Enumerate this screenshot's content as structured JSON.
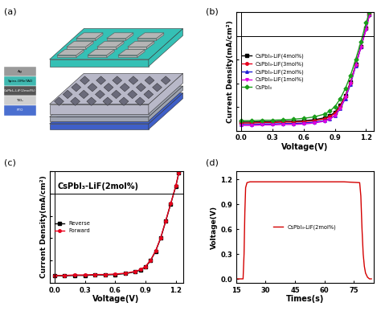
{
  "schematic": {
    "panel": "(a)",
    "layers": [
      "Ag",
      "Spiro-OMeTAD",
      "CsPbI₃-LiF(2mol%)",
      "TiO₂",
      "FTO"
    ]
  },
  "chart_data": [
    {
      "type": "line",
      "panel": "(b)",
      "x_label": "Voltage(V)",
      "y_label": "Current Density(mA/cm²)",
      "xlim": [
        -0.05,
        1.27
      ],
      "ylim": [
        -20,
        5
      ],
      "xticks": [
        0.0,
        0.3,
        0.6,
        0.9,
        1.2
      ],
      "yticks": [
        -20,
        -15,
        -10,
        -5,
        0,
        5
      ],
      "tick_labels": "x",
      "legend": "center left",
      "x": [
        0.0,
        0.1,
        0.2,
        0.3,
        0.4,
        0.5,
        0.6,
        0.7,
        0.8,
        0.85,
        0.9,
        0.95,
        1.0,
        1.05,
        1.1,
        1.15,
        1.2,
        1.23
      ],
      "series": [
        {
          "name": "CsPbI₃-LiF(4mol%)",
          "color": "#000000",
          "marker": "square",
          "line_style": "solid",
          "values": [
            -18.2,
            -18.2,
            -18.1,
            -18.1,
            -18.0,
            -18.0,
            -17.9,
            -17.7,
            -17.3,
            -16.9,
            -16.1,
            -14.7,
            -12.6,
            -9.7,
            -6.0,
            -2.2,
            1.6,
            4.5
          ]
        },
        {
          "name": "CsPbI₃-LiF(3mol%)",
          "color": "#e8001c",
          "marker": "circle",
          "line_style": "solid",
          "values": [
            -18.4,
            -18.4,
            -18.3,
            -18.3,
            -18.2,
            -18.2,
            -18.1,
            -17.9,
            -17.5,
            -17.1,
            -16.3,
            -14.9,
            -12.8,
            -9.9,
            -6.1,
            -2.2,
            1.7,
            4.6
          ]
        },
        {
          "name": "CsPbI₃-LiF(2mol%)",
          "color": "#1f1fd6",
          "marker": "triangle_up",
          "line_style": "solid",
          "values": [
            -18.7,
            -18.7,
            -18.6,
            -18.6,
            -18.5,
            -18.5,
            -18.4,
            -18.2,
            -17.9,
            -17.5,
            -16.8,
            -15.4,
            -13.2,
            -10.2,
            -6.3,
            -2.3,
            1.6,
            4.6
          ]
        },
        {
          "name": "CsPbI₃-LiF(1mol%)",
          "color": "#e000e0",
          "marker": "triangle_down",
          "line_style": "solid",
          "values": [
            -18.9,
            -18.9,
            -18.8,
            -18.8,
            -18.7,
            -18.7,
            -18.6,
            -18.4,
            -18.0,
            -17.6,
            -16.8,
            -15.3,
            -13.0,
            -10.0,
            -6.2,
            -2.4,
            1.4,
            4.3
          ]
        },
        {
          "name": "CsPbI₃",
          "color": "#1a9e1a",
          "marker": "diamond",
          "line_style": "solid",
          "values": [
            -17.9,
            -17.9,
            -17.8,
            -17.8,
            -17.7,
            -17.6,
            -17.4,
            -17.1,
            -16.5,
            -15.9,
            -14.9,
            -13.3,
            -11.1,
            -8.3,
            -4.9,
            -1.2,
            2.8,
            5.0
          ]
        }
      ]
    },
    {
      "type": "line",
      "panel": "(c)",
      "x_label": "Voltage(V)",
      "y_label": "Current Density(mA/cm²)",
      "annotation": "CsPbI₃-LiF(2mol%)",
      "xlim": [
        -0.05,
        1.27
      ],
      "ylim": [
        -20,
        5
      ],
      "xticks": [
        0.0,
        0.3,
        0.6,
        0.9,
        1.2
      ],
      "yticks": [
        -20,
        -15,
        -10,
        -5,
        0,
        5
      ],
      "tick_labels": "x",
      "legend": "center left",
      "x": [
        0.0,
        0.1,
        0.2,
        0.3,
        0.4,
        0.5,
        0.6,
        0.7,
        0.8,
        0.85,
        0.9,
        0.95,
        1.0,
        1.05,
        1.1,
        1.15,
        1.2,
        1.23
      ],
      "series": [
        {
          "name": "Reverse",
          "color": "#000000",
          "marker": "square",
          "line_style": "solid",
          "values": [
            -18.4,
            -18.4,
            -18.3,
            -18.3,
            -18.2,
            -18.2,
            -18.1,
            -17.9,
            -17.5,
            -17.1,
            -16.4,
            -15.0,
            -12.9,
            -10.0,
            -6.2,
            -2.3,
            1.6,
            4.6
          ]
        },
        {
          "name": "Forward",
          "color": "#e8001c",
          "marker": "circle",
          "line_style": "solid",
          "values": [
            -18.3,
            -18.3,
            -18.2,
            -18.2,
            -18.1,
            -18.1,
            -18.0,
            -17.8,
            -17.4,
            -17.0,
            -16.3,
            -14.9,
            -12.8,
            -9.9,
            -6.1,
            -2.2,
            1.7,
            4.7
          ]
        }
      ]
    },
    {
      "type": "line",
      "panel": "(d)",
      "x_label": "Times(s)",
      "y_label": "Voltage(V)",
      "xlim": [
        15,
        85
      ],
      "ylim": [
        -0.05,
        1.3
      ],
      "xticks": [
        15,
        30,
        45,
        60,
        75
      ],
      "yticks": [
        0.0,
        0.3,
        0.6,
        0.9,
        1.2
      ],
      "legend": "center",
      "x": [
        15,
        17,
        18.5,
        19.0,
        19.4,
        19.8,
        20.5,
        22,
        30,
        40,
        50,
        60,
        70,
        78,
        78.6,
        79.2,
        79.8,
        80.4,
        81,
        82,
        83,
        84
      ],
      "series": [
        {
          "name": "CsPbI₃-LiF(2mol%)",
          "color": "#d40000",
          "marker": "none",
          "line_style": "solid",
          "values": [
            0.0,
            0.0,
            0.0,
            0.3,
            0.8,
            1.1,
            1.16,
            1.17,
            1.17,
            1.17,
            1.17,
            1.17,
            1.17,
            1.16,
            1.0,
            0.6,
            0.3,
            0.15,
            0.07,
            0.02,
            0.0,
            0.0
          ]
        }
      ]
    }
  ]
}
